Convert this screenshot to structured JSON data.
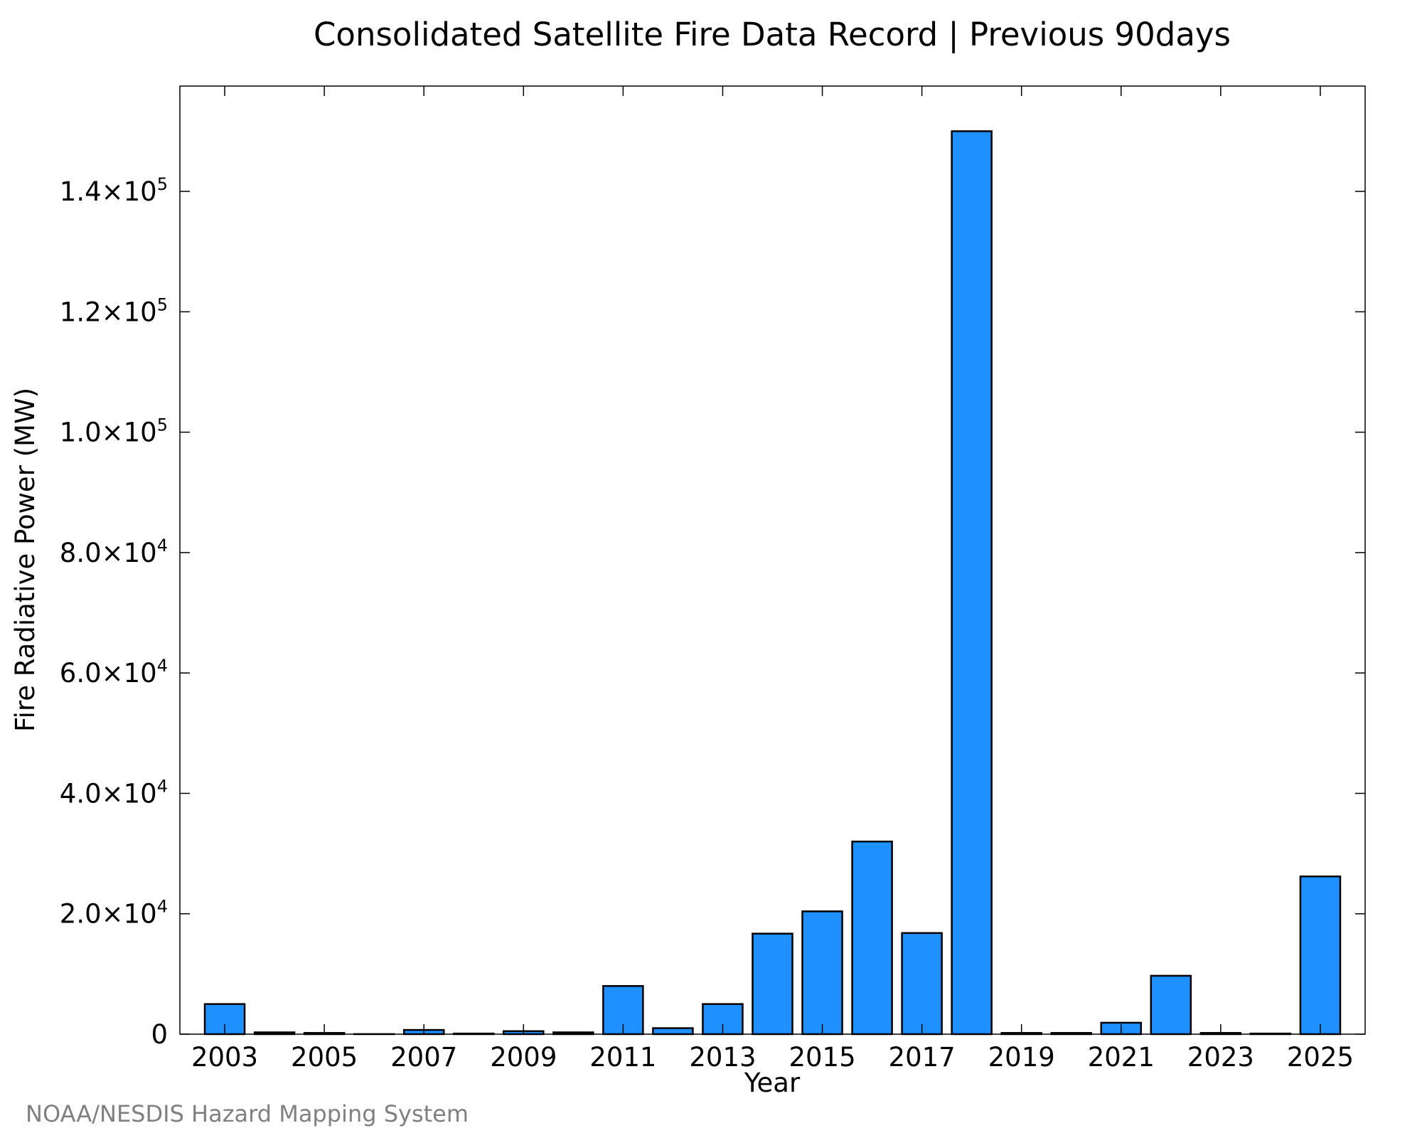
{
  "chart_data": {
    "type": "bar",
    "title": "Consolidated Satellite Fire Data Record | Previous 90days",
    "xlabel": "Year",
    "ylabel": "Fire Radiative Power (MW)",
    "credit": "NOAA/NESDIS Hazard Mapping System",
    "categories": [
      "2003",
      "2004",
      "2005",
      "2006",
      "2007",
      "2008",
      "2009",
      "2010",
      "2011",
      "2012",
      "2013",
      "2014",
      "2015",
      "2016",
      "2017",
      "2018",
      "2019",
      "2020",
      "2021",
      "2022",
      "2023",
      "2024",
      "2025"
    ],
    "values": [
      5000,
      300,
      200,
      0,
      700,
      100,
      500,
      300,
      8000,
      1000,
      5000,
      16700,
      20400,
      32000,
      16800,
      150000,
      200,
      200,
      1900,
      9700,
      200,
      100,
      26200
    ],
    "xticks": [
      "2003",
      "2005",
      "2007",
      "2009",
      "2011",
      "2013",
      "2015",
      "2017",
      "2019",
      "2021",
      "2023",
      "2025"
    ],
    "yticks": [
      {
        "value": 0,
        "mantissa": "0",
        "exp": ""
      },
      {
        "value": 20000,
        "mantissa": "2.0×10",
        "exp": "4"
      },
      {
        "value": 40000,
        "mantissa": "4.0×10",
        "exp": "4"
      },
      {
        "value": 60000,
        "mantissa": "6.0×10",
        "exp": "4"
      },
      {
        "value": 80000,
        "mantissa": "8.0×10",
        "exp": "4"
      },
      {
        "value": 100000,
        "mantissa": "1.0×10",
        "exp": "5"
      },
      {
        "value": 120000,
        "mantissa": "1.2×10",
        "exp": "5"
      },
      {
        "value": 140000,
        "mantissa": "1.4×10",
        "exp": "5"
      }
    ],
    "ylim": [
      0,
      157500
    ],
    "xlim": [
      2002.1,
      2025.9
    ],
    "bar_color": "#1e90ff",
    "bar_edge_color": "#000000",
    "grid": false
  }
}
